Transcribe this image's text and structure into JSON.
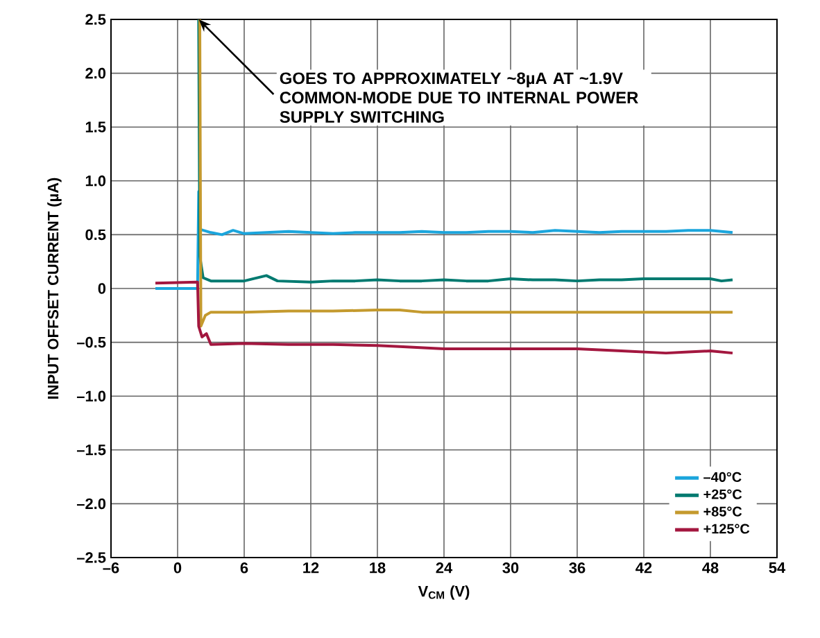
{
  "chart_data": {
    "type": "line",
    "xlabel": "V$_{CM}$ (V)",
    "ylabel": "INPUT OFFSET CURRENT (µA)",
    "xlim": [
      -6,
      54
    ],
    "ylim": [
      -2.5,
      2.5
    ],
    "xticks": [
      {
        "value": -6,
        "label": "–6"
      },
      0,
      6,
      12,
      18,
      24,
      30,
      36,
      42,
      48,
      54
    ],
    "yticks": [
      {
        "value": -2.5,
        "label": "–2.5"
      },
      {
        "value": -2.0,
        "label": "–2.0"
      },
      {
        "value": -1.5,
        "label": "–1.5"
      },
      {
        "value": -1.0,
        "label": "–1.0"
      },
      {
        "value": -0.5,
        "label": "–0.5"
      },
      0,
      0.5,
      {
        "value": 1.0,
        "label": "1.0"
      },
      1.5,
      {
        "value": 2.0,
        "label": "2.0"
      },
      2.5
    ],
    "grid": true,
    "legend": "bottom right",
    "marker": "none",
    "line_style": "solid",
    "annotations": [
      {
        "text": "GOES TO APPROXIMATELY ~8µA AT ~1.9V COMMON-MODE DUE TO INTERNAL POWER SUPPLY SWITCHING",
        "x": 1.9,
        "y": 2.5
      }
    ],
    "series": [
      {
        "name": "–40°C",
        "color": "#1ba5dc",
        "x": [
          -2,
          1.8,
          1.9,
          2.0,
          3,
          4,
          5,
          6,
          8,
          10,
          12,
          14,
          16,
          18,
          20,
          22,
          24,
          26,
          28,
          30,
          32,
          34,
          36,
          38,
          40,
          42,
          44,
          46,
          48,
          50
        ],
        "values": [
          0.0,
          0.0,
          0.9,
          0.55,
          0.52,
          0.5,
          0.54,
          0.51,
          0.52,
          0.53,
          0.52,
          0.51,
          0.52,
          0.52,
          0.52,
          0.53,
          0.52,
          0.52,
          0.53,
          0.53,
          0.52,
          0.54,
          0.53,
          0.52,
          0.53,
          0.53,
          0.53,
          0.54,
          0.54,
          0.52
        ]
      },
      {
        "name": "+25°C",
        "color": "#007a70",
        "x": [
          1.9,
          2.0,
          2.3,
          3,
          6,
          8,
          9,
          12,
          14,
          16,
          18,
          20,
          22,
          24,
          26,
          28,
          30,
          32,
          34,
          36,
          38,
          40,
          42,
          44,
          46,
          48,
          49,
          50
        ],
        "values": [
          2.5,
          0.3,
          0.1,
          0.07,
          0.07,
          0.12,
          0.07,
          0.06,
          0.07,
          0.07,
          0.08,
          0.07,
          0.07,
          0.08,
          0.07,
          0.07,
          0.09,
          0.08,
          0.08,
          0.07,
          0.08,
          0.08,
          0.09,
          0.09,
          0.09,
          0.09,
          0.07,
          0.08
        ]
      },
      {
        "name": "+85°C",
        "color": "#c49a2e",
        "x": [
          2.0,
          2.1,
          2.5,
          3,
          6,
          10,
          14,
          18,
          20,
          22,
          26,
          30,
          34,
          38,
          42,
          46,
          50
        ],
        "values": [
          2.5,
          -0.35,
          -0.25,
          -0.22,
          -0.22,
          -0.21,
          -0.21,
          -0.2,
          -0.2,
          -0.22,
          -0.22,
          -0.22,
          -0.22,
          -0.22,
          -0.22,
          -0.22,
          -0.22
        ]
      },
      {
        "name": "+125°C",
        "color": "#a3173f",
        "x": [
          -2,
          1.8,
          1.9,
          2.2,
          2.6,
          3,
          6,
          10,
          14,
          18,
          20,
          24,
          28,
          32,
          36,
          40,
          44,
          46,
          48,
          50
        ],
        "values": [
          0.05,
          0.06,
          -0.35,
          -0.45,
          -0.42,
          -0.52,
          -0.51,
          -0.52,
          -0.52,
          -0.53,
          -0.54,
          -0.56,
          -0.56,
          -0.56,
          -0.56,
          -0.58,
          -0.6,
          -0.59,
          -0.58,
          -0.6
        ]
      }
    ]
  }
}
